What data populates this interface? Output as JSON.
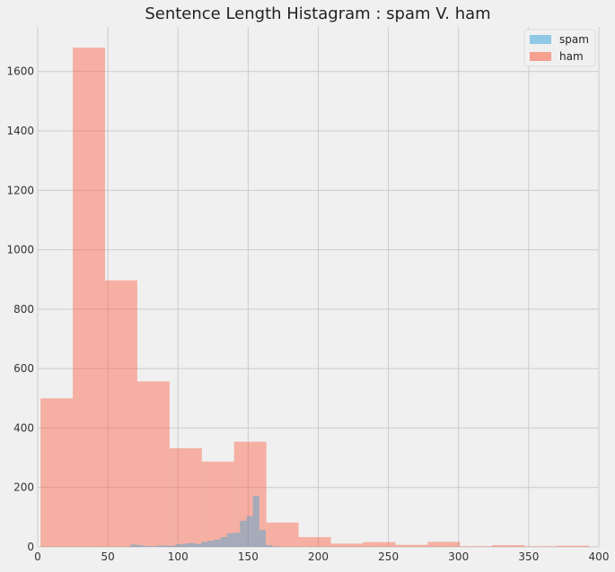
{
  "chart_data": {
    "type": "bar",
    "title": "Sentence Length Histagram : spam V. ham",
    "xlabel": "",
    "ylabel": "",
    "xlim": [
      0,
      400
    ],
    "ylim": [
      0,
      1750
    ],
    "x_ticks": [
      0,
      50,
      100,
      150,
      200,
      250,
      300,
      350,
      400
    ],
    "y_ticks": [
      0,
      200,
      400,
      600,
      800,
      1000,
      1200,
      1400,
      1600
    ],
    "grid": true,
    "legend_position": "top-right",
    "series": [
      {
        "name": "spam",
        "color": "#30a2da",
        "bins": [
          {
            "x0": 66,
            "x1": 70.6,
            "value": 8
          },
          {
            "x0": 70.6,
            "x1": 75.2,
            "value": 6
          },
          {
            "x0": 75.2,
            "x1": 79.8,
            "value": 3
          },
          {
            "x0": 79.8,
            "x1": 84.4,
            "value": 2
          },
          {
            "x0": 84.4,
            "x1": 89.0,
            "value": 4
          },
          {
            "x0": 89.0,
            "x1": 93.6,
            "value": 5
          },
          {
            "x0": 93.6,
            "x1": 98.2,
            "value": 4
          },
          {
            "x0": 98.2,
            "x1": 102.8,
            "value": 9
          },
          {
            "x0": 102.8,
            "x1": 107.4,
            "value": 11
          },
          {
            "x0": 107.4,
            "x1": 112.0,
            "value": 13
          },
          {
            "x0": 112.0,
            "x1": 116.6,
            "value": 10
          },
          {
            "x0": 116.6,
            "x1": 121.2,
            "value": 17
          },
          {
            "x0": 121.2,
            "x1": 125.8,
            "value": 21
          },
          {
            "x0": 125.8,
            "x1": 130.4,
            "value": 25
          },
          {
            "x0": 130.4,
            "x1": 135.0,
            "value": 33
          },
          {
            "x0": 135.0,
            "x1": 139.6,
            "value": 46
          },
          {
            "x0": 139.6,
            "x1": 144.2,
            "value": 48
          },
          {
            "x0": 144.2,
            "x1": 148.8,
            "value": 88
          },
          {
            "x0": 148.8,
            "x1": 153.4,
            "value": 103
          },
          {
            "x0": 153.4,
            "x1": 158.0,
            "value": 172
          },
          {
            "x0": 158.0,
            "x1": 162.6,
            "value": 57
          },
          {
            "x0": 162.6,
            "x1": 167.2,
            "value": 6
          },
          {
            "x0": 167.2,
            "x1": 171.8,
            "value": 2
          }
        ]
      },
      {
        "name": "ham",
        "color": "#fc4f30",
        "bins": [
          {
            "x0": 2,
            "x1": 25,
            "value": 500
          },
          {
            "x0": 25,
            "x1": 48,
            "value": 1680
          },
          {
            "x0": 48,
            "x1": 71,
            "value": 897
          },
          {
            "x0": 71,
            "x1": 94,
            "value": 557
          },
          {
            "x0": 94,
            "x1": 117,
            "value": 332
          },
          {
            "x0": 117,
            "x1": 140,
            "value": 287
          },
          {
            "x0": 140,
            "x1": 163,
            "value": 354
          },
          {
            "x0": 163,
            "x1": 186,
            "value": 82
          },
          {
            "x0": 186,
            "x1": 209,
            "value": 33
          },
          {
            "x0": 209,
            "x1": 232,
            "value": 11
          },
          {
            "x0": 232,
            "x1": 255,
            "value": 16
          },
          {
            "x0": 255,
            "x1": 278,
            "value": 7
          },
          {
            "x0": 278,
            "x1": 301,
            "value": 17
          },
          {
            "x0": 301,
            "x1": 324,
            "value": 2
          },
          {
            "x0": 324,
            "x1": 347,
            "value": 6
          },
          {
            "x0": 347,
            "x1": 370,
            "value": 2
          },
          {
            "x0": 370,
            "x1": 393,
            "value": 4
          }
        ]
      }
    ]
  }
}
